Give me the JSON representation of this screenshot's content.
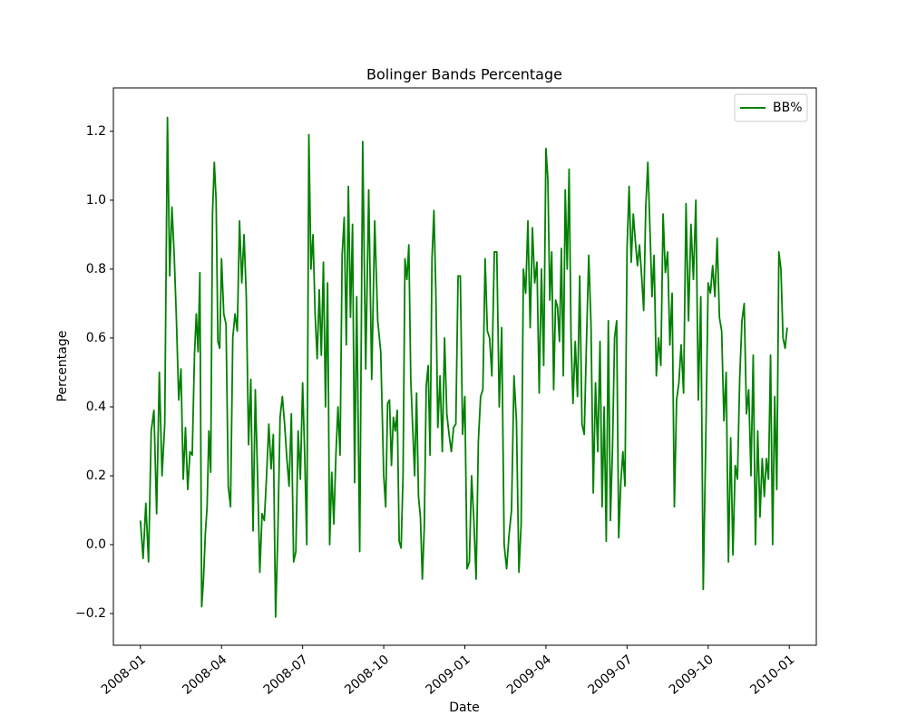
{
  "chart_data": {
    "type": "line",
    "title": "Bolinger Bands Percentage",
    "x_label": "Date",
    "y_label": "Percentage",
    "x": [
      "2008-01",
      "2008-01",
      "2008-01",
      "2008-01",
      "2008-01",
      "2008-01",
      "2008-01",
      "2008-01",
      "2008-01",
      "2008-01",
      "2008-02",
      "2008-02",
      "2008-02",
      "2008-02",
      "2008-02",
      "2008-02",
      "2008-02",
      "2008-02",
      "2008-02",
      "2008-02",
      "2008-02",
      "2008-02",
      "2008-03",
      "2008-03",
      "2008-03",
      "2008-03",
      "2008-03",
      "2008-03",
      "2008-03",
      "2008-03",
      "2008-03",
      "2008-03",
      "2008-03",
      "2008-03",
      "2008-03",
      "2008-03",
      "2008-03",
      "2008-04",
      "2008-04",
      "2008-04",
      "2008-04",
      "2008-04",
      "2008-04",
      "2008-04",
      "2008-04",
      "2008-04",
      "2008-04",
      "2008-04",
      "2008-04",
      "2008-05",
      "2008-05",
      "2008-05",
      "2008-05",
      "2008-05",
      "2008-05",
      "2008-05",
      "2008-05",
      "2008-05",
      "2008-05",
      "2008-05",
      "2008-05",
      "2008-06",
      "2008-06",
      "2008-06",
      "2008-06",
      "2008-06",
      "2008-06",
      "2008-06",
      "2008-06",
      "2008-06",
      "2008-06",
      "2008-06",
      "2008-06",
      "2008-07",
      "2008-07",
      "2008-07",
      "2008-07",
      "2008-07",
      "2008-07",
      "2008-07",
      "2008-07",
      "2008-07",
      "2008-07",
      "2008-07",
      "2008-07",
      "2008-07",
      "2008-08",
      "2008-08",
      "2008-08",
      "2008-08",
      "2008-08",
      "2008-08",
      "2008-08",
      "2008-08",
      "2008-08",
      "2008-08",
      "2008-08",
      "2008-08",
      "2008-08",
      "2008-09",
      "2008-09",
      "2008-09",
      "2008-09",
      "2008-09",
      "2008-09",
      "2008-09",
      "2008-09",
      "2008-09",
      "2008-10",
      "2008-10",
      "2008-10",
      "2008-10",
      "2008-10",
      "2008-10",
      "2008-10",
      "2008-10",
      "2008-10",
      "2008-10",
      "2008-10",
      "2008-10",
      "2008-10",
      "2008-10",
      "2008-11",
      "2008-11",
      "2008-11",
      "2008-11",
      "2008-11",
      "2008-11",
      "2008-11",
      "2008-11",
      "2008-11",
      "2008-11",
      "2008-11",
      "2008-11",
      "2008-11",
      "2008-11",
      "2008-12",
      "2008-12",
      "2008-12",
      "2008-12",
      "2008-12",
      "2008-12",
      "2008-12",
      "2008-12",
      "2008-12",
      "2008-12",
      "2008-12",
      "2008-12",
      "2009-01",
      "2009-01",
      "2009-01",
      "2009-01",
      "2009-01",
      "2009-01",
      "2009-01",
      "2009-01",
      "2009-01",
      "2009-01",
      "2009-01",
      "2009-01",
      "2009-02",
      "2009-02",
      "2009-02",
      "2009-02",
      "2009-02",
      "2009-02",
      "2009-02",
      "2009-02",
      "2009-02",
      "2009-02",
      "2009-02",
      "2009-03",
      "2009-03",
      "2009-03",
      "2009-03",
      "2009-03",
      "2009-03",
      "2009-03",
      "2009-03",
      "2009-03",
      "2009-03",
      "2009-03",
      "2009-03",
      "2009-04",
      "2009-04",
      "2009-04",
      "2009-04",
      "2009-04",
      "2009-04",
      "2009-04",
      "2009-04",
      "2009-04",
      "2009-04",
      "2009-04",
      "2009-04",
      "2009-04",
      "2009-04",
      "2009-05",
      "2009-05",
      "2009-05",
      "2009-05",
      "2009-05",
      "2009-05",
      "2009-05",
      "2009-05",
      "2009-05",
      "2009-05",
      "2009-05",
      "2009-05",
      "2009-06",
      "2009-06",
      "2009-06",
      "2009-06",
      "2009-06",
      "2009-06",
      "2009-06",
      "2009-06",
      "2009-06",
      "2009-06",
      "2009-06",
      "2009-06",
      "2009-06",
      "2009-07",
      "2009-07",
      "2009-07",
      "2009-07",
      "2009-07",
      "2009-07",
      "2009-07",
      "2009-07",
      "2009-07",
      "2009-07",
      "2009-07",
      "2009-07",
      "2009-07",
      "2009-08",
      "2009-08",
      "2009-08",
      "2009-08",
      "2009-08",
      "2009-08",
      "2009-08",
      "2009-08",
      "2009-08",
      "2009-08",
      "2009-08",
      "2009-08",
      "2009-09",
      "2009-09",
      "2009-09",
      "2009-09",
      "2009-09",
      "2009-09",
      "2009-09",
      "2009-09",
      "2009-09",
      "2009-09",
      "2009-09",
      "2009-10",
      "2009-10",
      "2009-10",
      "2009-10",
      "2009-10",
      "2009-10",
      "2009-10",
      "2009-10",
      "2009-10",
      "2009-10",
      "2009-10",
      "2009-10",
      "2009-11",
      "2009-11",
      "2009-11",
      "2009-11",
      "2009-11",
      "2009-11",
      "2009-11",
      "2009-11",
      "2009-11",
      "2009-11",
      "2009-11",
      "2009-11",
      "2009-12",
      "2009-12",
      "2009-12",
      "2009-12",
      "2009-12",
      "2009-12",
      "2009-12",
      "2009-12",
      "2009-12",
      "2009-12",
      "2009-12",
      "2009-12",
      "2009-12"
    ],
    "series": [
      {
        "name": "BB%",
        "color": "#008000",
        "values": [
          0.07,
          -0.04,
          0.12,
          -0.05,
          0.33,
          0.39,
          0.09,
          0.5,
          0.2,
          0.35,
          1.24,
          0.78,
          0.98,
          0.84,
          0.65,
          0.42,
          0.51,
          0.19,
          0.34,
          0.16,
          0.27,
          0.26,
          0.55,
          0.67,
          0.56,
          0.79,
          -0.18,
          -0.1,
          0.03,
          0.11,
          0.33,
          0.21,
          0.96,
          1.11,
          1.0,
          0.59,
          0.57,
          0.83,
          0.67,
          0.64,
          0.17,
          0.11,
          0.6,
          0.67,
          0.62,
          0.94,
          0.76,
          0.9,
          0.72,
          0.29,
          0.48,
          0.04,
          0.45,
          0.2,
          -0.08,
          0.09,
          0.07,
          0.2,
          0.35,
          0.22,
          0.32,
          -0.21,
          0.03,
          0.37,
          0.43,
          0.35,
          0.25,
          0.17,
          0.38,
          -0.05,
          -0.02,
          0.33,
          0.19,
          0.47,
          0.26,
          0.0,
          1.19,
          0.8,
          0.9,
          0.67,
          0.54,
          0.74,
          0.55,
          0.82,
          0.4,
          0.76,
          0.0,
          0.21,
          0.06,
          0.26,
          0.4,
          0.26,
          0.84,
          0.95,
          0.58,
          1.04,
          0.66,
          0.93,
          0.18,
          0.72,
          -0.02,
          1.17,
          0.51,
          1.03,
          0.48,
          0.94,
          0.65,
          0.56,
          0.2,
          0.11,
          0.41,
          0.42,
          0.23,
          0.37,
          0.33,
          0.39,
          0.01,
          -0.01,
          0.2,
          0.83,
          0.77,
          0.87,
          0.48,
          0.34,
          0.2,
          0.44,
          0.14,
          0.08,
          -0.1,
          0.05,
          0.46,
          0.52,
          0.26,
          0.83,
          0.97,
          0.73,
          0.34,
          0.49,
          0.27,
          0.6,
          0.38,
          0.32,
          0.27,
          0.34,
          0.35,
          0.78,
          0.78,
          0.32,
          0.43,
          -0.07,
          -0.05,
          0.2,
          0.07,
          -0.1,
          0.3,
          0.43,
          0.45,
          0.83,
          0.62,
          0.6,
          0.49,
          0.85,
          0.85,
          0.4,
          0.63,
          0.0,
          -0.07,
          0.03,
          0.1,
          0.49,
          0.36,
          -0.08,
          0.06,
          0.8,
          0.73,
          0.94,
          0.63,
          0.92,
          0.76,
          0.82,
          0.44,
          0.8,
          0.52,
          1.15,
          1.06,
          0.71,
          0.85,
          0.45,
          0.71,
          0.69,
          0.59,
          0.86,
          0.49,
          1.03,
          0.8,
          1.09,
          0.6,
          0.41,
          0.59,
          0.43,
          0.78,
          0.35,
          0.32,
          0.59,
          0.84,
          0.64,
          0.15,
          0.47,
          0.27,
          0.59,
          0.11,
          0.4,
          0.01,
          0.65,
          0.07,
          0.28,
          0.6,
          0.65,
          0.02,
          0.18,
          0.27,
          0.17,
          0.86,
          1.04,
          0.82,
          0.96,
          0.88,
          0.81,
          0.87,
          0.78,
          0.68,
          0.98,
          1.11,
          0.92,
          0.72,
          0.84,
          0.49,
          0.6,
          0.52,
          0.96,
          0.79,
          0.85,
          0.58,
          0.73,
          0.11,
          0.42,
          0.47,
          0.58,
          0.44,
          0.99,
          0.65,
          0.93,
          0.77,
          1.0,
          0.42,
          0.72,
          -0.13,
          0.29,
          0.76,
          0.73,
          0.81,
          0.72,
          0.89,
          0.66,
          0.62,
          0.36,
          0.5,
          -0.05,
          0.31,
          -0.03,
          0.23,
          0.19,
          0.48,
          0.65,
          0.7,
          0.38,
          0.45,
          0.2,
          0.55,
          0.0,
          0.33,
          0.08,
          0.25,
          0.14,
          0.25,
          0.19,
          0.55,
          0.0,
          0.43,
          0.16,
          0.85,
          0.8,
          0.6,
          0.57,
          0.63
        ]
      }
    ],
    "xlim": [
      "2007-12",
      "2010-02"
    ],
    "xticks": [
      "2008-01",
      "2008-04",
      "2008-07",
      "2008-10",
      "2009-01",
      "2009-04",
      "2009-07",
      "2009-10",
      "2010-01"
    ],
    "ylim": [
      -0.292,
      1.326
    ],
    "yticks": [
      {
        "value": -0.2,
        "label": "−0.2"
      },
      {
        "value": 0,
        "label": "0.0"
      },
      0.2,
      0.4,
      0.6,
      0.8,
      {
        "value": 1,
        "label": "1.0"
      },
      1.2
    ],
    "grid": false,
    "legend": "upper right"
  }
}
